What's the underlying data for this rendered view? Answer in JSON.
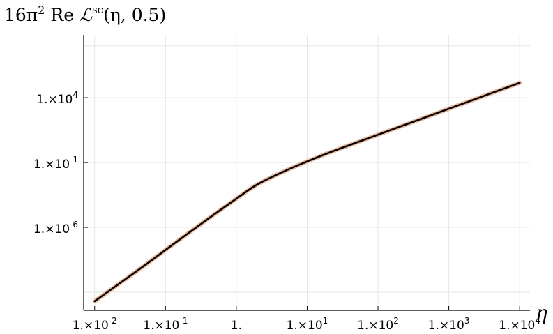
{
  "chart_data": {
    "type": "line",
    "title": "16π² Re ℒˢᶜ(η, 0.5)",
    "title_parts": {
      "prefix": "16π",
      "pow": "2",
      "re": " Re ",
      "L": "ℒ",
      "sup": "sc",
      "args": "(η, 0.5)"
    },
    "xlabel": "η",
    "ylabel": "",
    "xscale": "log",
    "yscale": "log",
    "xlim": [
      0.007,
      14000
    ],
    "ylim": [
      4e-13,
      700000000.0
    ],
    "grid": true,
    "legend": "none",
    "x_ticks": [
      {
        "value": 0.01,
        "mant": "1.×10",
        "exp": "-2"
      },
      {
        "value": 0.1,
        "mant": "1.×10",
        "exp": "-1"
      },
      {
        "value": 1,
        "mant": "1.",
        "exp": ""
      },
      {
        "value": 10,
        "mant": "1.×10",
        "exp": "1"
      },
      {
        "value": 100,
        "mant": "1.×10",
        "exp": "2"
      },
      {
        "value": 1000,
        "mant": "1.×10",
        "exp": "3"
      },
      {
        "value": 10000,
        "mant": "1.×10",
        "exp": "4"
      }
    ],
    "y_ticks": [
      {
        "value": 10000,
        "mant": "1.×10",
        "exp": "4"
      },
      {
        "value": 0.1,
        "mant": "1.×10",
        "exp": "-1"
      },
      {
        "value": 1e-06,
        "mant": "1.×10",
        "exp": "-6"
      }
    ],
    "y_gridlines": [
      1e-11,
      1e-06,
      0.1,
      10000,
      100000000.0
    ],
    "series": [
      {
        "color": "#e8b49a",
        "x": [
          0.01,
          0.02,
          0.05,
          0.1,
          0.2,
          0.5,
          1,
          2,
          5,
          10,
          20,
          50,
          100,
          200,
          500,
          1000,
          2000,
          5000,
          10000
        ],
        "y": [
          2e-12,
          3e-11,
          1.1e-09,
          1.8e-08,
          2.9e-07,
          1.1e-05,
          0.00016,
          0.0021,
          0.024,
          0.12,
          0.55,
          3.5,
          14,
          56,
          350,
          1400,
          5600,
          35000,
          140000.0
        ]
      }
    ]
  }
}
